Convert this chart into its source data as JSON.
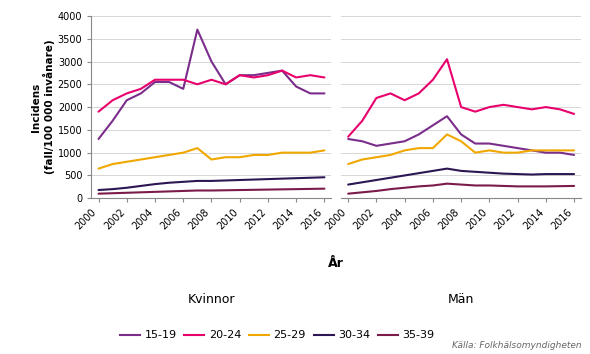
{
  "years": [
    2000,
    2001,
    2002,
    2003,
    2004,
    2005,
    2006,
    2007,
    2008,
    2009,
    2010,
    2011,
    2012,
    2013,
    2014,
    2015,
    2016
  ],
  "kvinnor": {
    "15-19": [
      1300,
      1700,
      2150,
      2300,
      2550,
      2550,
      2400,
      3700,
      3000,
      2500,
      2700,
      2700,
      2750,
      2800,
      2450,
      2300,
      2300
    ],
    "20-24": [
      1900,
      2150,
      2300,
      2400,
      2600,
      2600,
      2600,
      2500,
      2600,
      2500,
      2700,
      2650,
      2700,
      2800,
      2650,
      2700,
      2650
    ],
    "25-29": [
      650,
      750,
      800,
      850,
      900,
      950,
      1000,
      1100,
      850,
      900,
      900,
      950,
      950,
      1000,
      1000,
      1000,
      1050
    ],
    "30-34": [
      180,
      200,
      230,
      270,
      310,
      340,
      360,
      380,
      380,
      390,
      400,
      410,
      420,
      430,
      440,
      450,
      460
    ],
    "35-39": [
      100,
      110,
      120,
      130,
      140,
      150,
      160,
      170,
      170,
      175,
      180,
      185,
      190,
      195,
      200,
      205,
      210
    ]
  },
  "man": {
    "15-19": [
      1300,
      1250,
      1150,
      1200,
      1250,
      1400,
      1600,
      1800,
      1400,
      1200,
      1200,
      1150,
      1100,
      1050,
      1000,
      1000,
      950
    ],
    "20-24": [
      1350,
      1700,
      2200,
      2300,
      2150,
      2300,
      2600,
      3050,
      2000,
      1900,
      2000,
      2050,
      2000,
      1950,
      2000,
      1950,
      1850
    ],
    "25-29": [
      750,
      850,
      900,
      950,
      1050,
      1100,
      1100,
      1400,
      1250,
      1000,
      1050,
      1000,
      1000,
      1050,
      1050,
      1050,
      1050
    ],
    "30-34": [
      300,
      350,
      400,
      450,
      500,
      550,
      600,
      650,
      600,
      580,
      560,
      540,
      530,
      520,
      530,
      530,
      530
    ],
    "35-39": [
      100,
      130,
      160,
      200,
      230,
      260,
      280,
      320,
      300,
      280,
      280,
      270,
      260,
      260,
      260,
      265,
      270
    ]
  },
  "colors": {
    "15-19": "#7B2D8B",
    "20-24": "#E8006C",
    "25-29": "#F0A800",
    "30-34": "#2C1654",
    "35-39": "#7B1B4A"
  },
  "ylim": [
    0,
    4000
  ],
  "yticks": [
    0,
    500,
    1000,
    1500,
    2000,
    2500,
    3000,
    3500,
    4000
  ],
  "ylabel": "Incidens\n(fall/100 000 invånare)",
  "xlabel": "År",
  "panel_labels": [
    "Kvinnor",
    "Män"
  ],
  "legend_labels": [
    "15-19",
    "20-24",
    "25-29",
    "30-34",
    "35-39"
  ],
  "source_text": "Källa: Folkhälsomyndigheten",
  "line_width": 1.5,
  "xticks": [
    2000,
    2002,
    2004,
    2006,
    2008,
    2010,
    2012,
    2014,
    2016
  ]
}
